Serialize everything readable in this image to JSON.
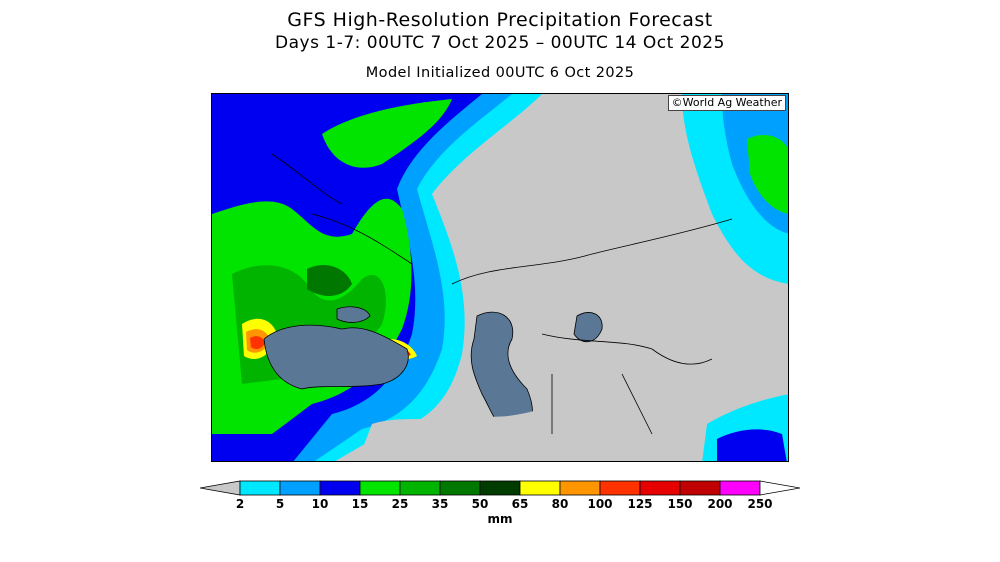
{
  "title": "GFS High-Resolution Precipitation Forecast",
  "subtitle": "Days 1-7: 00UTC 7 Oct 2025 – 00UTC 14 Oct 2025",
  "init_line": "Model Initialized 00UTC 6 Oct 2025",
  "credit": "©World Ag Weather",
  "legend": {
    "units": "mm",
    "ticks": [
      "2",
      "5",
      "10",
      "15",
      "25",
      "35",
      "50",
      "65",
      "80",
      "100",
      "125",
      "150",
      "200",
      "250"
    ],
    "colors": {
      "below_min": "#c8c8c8",
      "bins": [
        "#00e8ff",
        "#00a0ff",
        "#0000f0",
        "#00e400",
        "#00b400",
        "#007800",
        "#003c00",
        "#ffff00",
        "#ff9600",
        "#ff3200",
        "#e60000",
        "#c00000",
        "#ff00ff",
        "#b464ff"
      ],
      "above_max": "#ffffff"
    }
  },
  "map_colors": {
    "land_dry": "#c8c8c8",
    "water": "#5a7896",
    "cyan": "#00e8ff",
    "light_blue": "#00a0ff",
    "blue": "#0000f0",
    "green_light": "#00e400",
    "green": "#00b400",
    "green_dark": "#007800",
    "yellow": "#ffff00",
    "orange": "#ff9600",
    "red": "#ff3200",
    "magenta": "#ff00ff"
  }
}
